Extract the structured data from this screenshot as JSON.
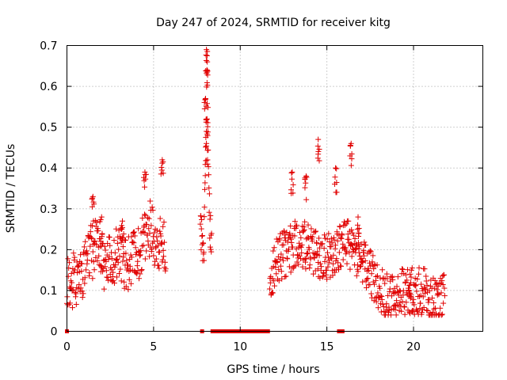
{
  "chart_data": {
    "type": "scatter",
    "title": "Day 247 of 2024, SRMTID for receiver kitg",
    "xlabel": "GPS time / hours",
    "ylabel": "SRMTID / TECUs",
    "xlim": [
      0,
      24
    ],
    "ylim": [
      0,
      0.7
    ],
    "x_ticks": [
      0,
      5,
      10,
      15,
      20
    ],
    "x_tick_labels": [
      "0",
      "5",
      "10",
      "15",
      "20"
    ],
    "y_ticks": [
      0,
      0.1,
      0.2,
      0.3,
      0.4,
      0.5,
      0.6,
      0.7
    ],
    "y_tick_labels": [
      "0",
      "0.1",
      "0.2",
      "0.3",
      "0.4",
      "0.5",
      "0.6",
      "0.7"
    ],
    "grid": true,
    "marker": "plus",
    "color": "#e00000",
    "series": [
      {
        "name": "SRMTID",
        "segments": [
          {
            "x_start": 0.0,
            "x_end": 5.7,
            "step": 0.02,
            "envelope": [
              [
                0.0,
                0.13
              ],
              [
                0.5,
                0.12
              ],
              [
                1.0,
                0.16
              ],
              [
                1.5,
                0.2
              ],
              [
                1.8,
                0.22
              ],
              [
                2.2,
                0.16
              ],
              [
                2.6,
                0.18
              ],
              [
                3.0,
                0.2
              ],
              [
                3.5,
                0.16
              ],
              [
                4.0,
                0.18
              ],
              [
                4.4,
                0.22
              ],
              [
                4.8,
                0.25
              ],
              [
                5.2,
                0.22
              ],
              [
                5.7,
                0.2
              ]
            ],
            "spread": 0.07,
            "peaks": [
              [
                1.5,
                0.33
              ],
              [
                2.0,
                0.28
              ],
              [
                3.2,
                0.27
              ],
              [
                4.5,
                0.39
              ],
              [
                5.5,
                0.42
              ]
            ]
          },
          {
            "x_start": 7.7,
            "x_end": 8.35,
            "step": 0.015,
            "envelope": [
              [
                7.7,
                0.25
              ],
              [
                7.9,
                0.2
              ],
              [
                8.0,
                0.45
              ],
              [
                8.1,
                0.6
              ],
              [
                8.2,
                0.3
              ],
              [
                8.35,
                0.2
              ]
            ],
            "spread": 0.06,
            "peaks": [
              [
                8.05,
                0.69
              ],
              [
                8.1,
                0.66
              ],
              [
                8.0,
                0.57
              ],
              [
                8.08,
                0.52
              ],
              [
                8.05,
                0.46
              ]
            ]
          },
          {
            "x_start": 11.7,
            "x_end": 21.8,
            "step": 0.02,
            "envelope": [
              [
                11.7,
                0.12
              ],
              [
                12.2,
                0.18
              ],
              [
                12.8,
                0.2
              ],
              [
                13.5,
                0.22
              ],
              [
                14.0,
                0.2
              ],
              [
                14.5,
                0.18
              ],
              [
                15.0,
                0.18
              ],
              [
                15.5,
                0.2
              ],
              [
                16.0,
                0.22
              ],
              [
                16.5,
                0.2
              ],
              [
                17.0,
                0.17
              ],
              [
                17.5,
                0.14
              ],
              [
                18.0,
                0.1
              ],
              [
                18.5,
                0.08
              ],
              [
                19.0,
                0.08
              ],
              [
                19.5,
                0.1
              ],
              [
                20.0,
                0.1
              ],
              [
                20.5,
                0.1
              ],
              [
                21.0,
                0.08
              ],
              [
                21.8,
                0.08
              ]
            ],
            "spread": 0.06,
            "peaks": [
              [
                13.0,
                0.39
              ],
              [
                13.8,
                0.38
              ],
              [
                14.5,
                0.47
              ],
              [
                15.5,
                0.4
              ],
              [
                16.4,
                0.46
              ],
              [
                16.8,
                0.28
              ],
              [
                19.8,
                0.14
              ]
            ]
          }
        ]
      }
    ],
    "zero_markers_x": [
      0.0,
      7.8,
      8.4,
      8.6,
      8.8,
      9.0,
      9.2,
      9.4,
      9.6,
      9.8,
      10.0,
      10.2,
      10.4,
      10.6,
      10.8,
      11.0,
      11.2,
      11.4,
      11.6,
      15.7,
      15.9
    ]
  }
}
